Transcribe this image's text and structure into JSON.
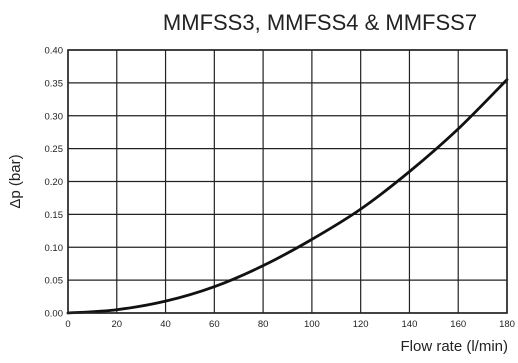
{
  "chart_data": {
    "type": "line",
    "title": "MMFSS3, MMFSS4 & MMFSS7",
    "xlabel": "Flow rate (l/min)",
    "ylabel": "Δp (bar)",
    "xlim": [
      0,
      180
    ],
    "ylim": [
      0,
      0.4
    ],
    "x_ticks": [
      0,
      20,
      40,
      60,
      80,
      100,
      120,
      140,
      160,
      180
    ],
    "x_tick_labels": [
      "0",
      "20",
      "40",
      "60",
      "80",
      "100",
      "120",
      "140",
      "160",
      "180"
    ],
    "y_ticks": [
      0,
      0.05,
      0.1,
      0.15,
      0.2,
      0.25,
      0.3,
      0.35,
      0.4
    ],
    "y_tick_labels": [
      "0.00",
      "0.05",
      "0.10",
      "0.15",
      "0.20",
      "0.25",
      "0.30",
      "0.35",
      "0.40"
    ],
    "grid": true,
    "series": [
      {
        "x": [
          0,
          20,
          40,
          60,
          80,
          100,
          120,
          140,
          160,
          180
        ],
        "y": [
          0.0,
          0.005,
          0.018,
          0.04,
          0.072,
          0.112,
          0.158,
          0.215,
          0.28,
          0.355
        ]
      }
    ],
    "colors": {
      "line": "#111111",
      "grid": "#222222"
    }
  }
}
